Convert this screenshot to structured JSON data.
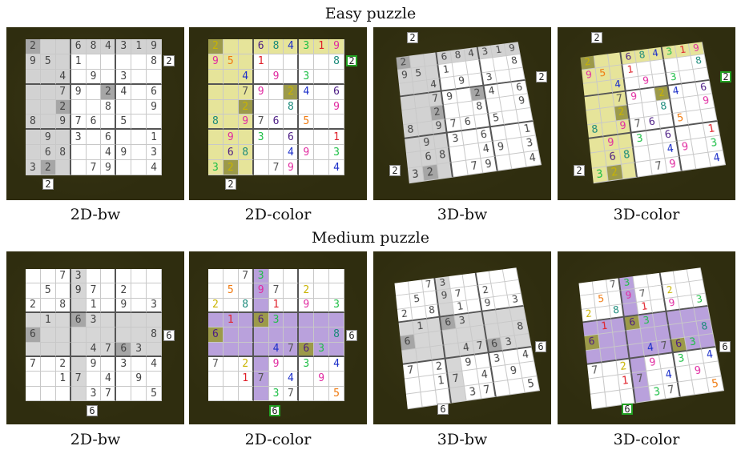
{
  "titles": {
    "easy": "Easy puzzle",
    "medium": "Medium puzzle"
  },
  "captions": [
    "2D-bw",
    "2D-color",
    "3D-bw",
    "3D-color"
  ],
  "colors": {
    "panel_bg": "#2f2d0f",
    "easy_highlight": "#e6e49a",
    "easy_bw_highlight": "#d2d2d2",
    "medium_highlight": "#b9a1dc",
    "medium_bw_highlight": "#d6d6d6",
    "digit_colors": {
      "1": "#e0202a",
      "2": "#c9b400",
      "3": "#1fbf47",
      "4": "#1c2fc9",
      "5": "#f07a10",
      "6": "#4b1b84",
      "7": "#555555",
      "8": "#1a8a7a",
      "9": "#e02aa0"
    }
  },
  "easy": {
    "target_digit": "2",
    "grid": [
      [
        "2",
        "",
        "",
        "6",
        "8",
        "4",
        "3",
        "1",
        "9"
      ],
      [
        "9",
        "5",
        "",
        "1",
        "",
        "",
        "",
        "",
        "8"
      ],
      [
        "",
        "",
        "4",
        "",
        "9",
        "",
        "3",
        "",
        ""
      ],
      [
        "",
        "",
        "7",
        "9",
        "",
        "2",
        "4",
        "",
        "6"
      ],
      [
        "",
        "",
        "2",
        "",
        "",
        "8",
        "",
        "",
        "9"
      ],
      [
        "8",
        "",
        "9",
        "7",
        "6",
        "",
        "5",
        "",
        ""
      ],
      [
        "",
        "9",
        "",
        "3",
        "",
        "6",
        "",
        "",
        "1"
      ],
      [
        "",
        "6",
        "8",
        "",
        "",
        "4",
        "9",
        "",
        "3"
      ],
      [
        "3",
        "2",
        "",
        "",
        "7",
        "9",
        "",
        "",
        "4"
      ]
    ],
    "hl_rows": [
      0
    ],
    "hl_cols": [
      0,
      1,
      2
    ]
  },
  "medium": {
    "target_digit": "6",
    "grid": [
      [
        "",
        "",
        "7",
        "3",
        "",
        "",
        "",
        "",
        ""
      ],
      [
        "",
        "5",
        "",
        "9",
        "7",
        "",
        "2",
        "",
        ""
      ],
      [
        "2",
        "",
        "8",
        "",
        "1",
        "",
        "9",
        "",
        "3"
      ],
      [
        "",
        "1",
        "",
        "6",
        "3",
        "",
        "",
        "",
        ""
      ],
      [
        "6",
        "",
        "",
        "",
        "",
        "",
        "",
        "",
        "8"
      ],
      [
        "",
        "",
        "",
        "",
        "4",
        "7",
        "6",
        "3",
        ""
      ],
      [
        "7",
        "",
        "2",
        "",
        "9",
        "",
        "3",
        "",
        "4"
      ],
      [
        "",
        "",
        "1",
        "7",
        "",
        "4",
        "",
        "9",
        ""
      ],
      [
        "",
        "",
        "",
        "",
        "3",
        "7",
        "",
        "",
        "5"
      ]
    ],
    "hl_rows": [
      3,
      4,
      5
    ],
    "hl_cols": [
      3
    ]
  }
}
